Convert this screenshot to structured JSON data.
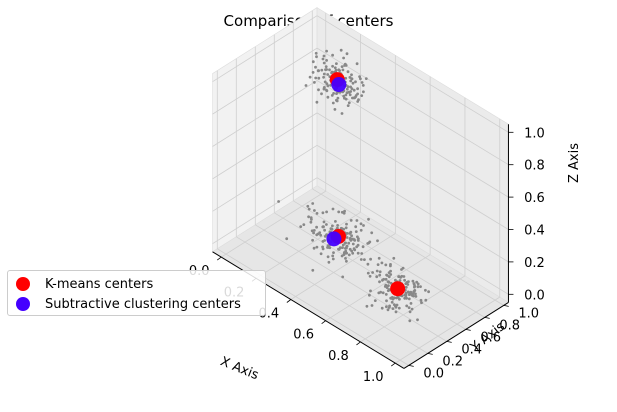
{
  "chart_data": {
    "type": "scatter",
    "title": "Comparison of centers",
    "xlabel": "X Axis",
    "ylabel": "Y Axis",
    "zlabel": "Z Axis",
    "xlim": [
      0,
      1
    ],
    "ylim": [
      0,
      1
    ],
    "zlim": [
      0,
      1
    ],
    "x_ticks": [
      "0.0",
      "0.2",
      "0.4",
      "0.6",
      "0.8",
      "1.0"
    ],
    "y_ticks": [
      "0.0",
      "0.2",
      "0.4",
      "0.6",
      "0.8",
      "1.0"
    ],
    "z_ticks": [
      "0.0",
      "0.2",
      "0.4",
      "0.6",
      "0.8",
      "1.0"
    ],
    "grid": true,
    "legend_position": "lower-left",
    "clusters_approx": [
      {
        "center": [
          0.18,
          0.85,
          0.82
        ],
        "spread": [
          0.07,
          0.07,
          0.06
        ],
        "count": 140
      },
      {
        "center": [
          0.45,
          0.35,
          0.22
        ],
        "spread": [
          0.08,
          0.08,
          0.06
        ],
        "count": 170
      },
      {
        "center": [
          0.85,
          0.25,
          0.2
        ],
        "spread": [
          0.07,
          0.08,
          0.05
        ],
        "count": 150
      }
    ],
    "series": [
      {
        "name": "K-means centers",
        "color": "#ff0000",
        "points": [
          [
            0.17,
            0.86,
            0.82
          ],
          [
            0.45,
            0.36,
            0.22
          ],
          [
            0.85,
            0.25,
            0.2
          ]
        ]
      },
      {
        "name": "Subtractive clustering centers",
        "color": "#4400ff",
        "points": [
          [
            0.19,
            0.84,
            0.81
          ],
          [
            0.44,
            0.33,
            0.21
          ]
        ]
      }
    ],
    "data_point_color": "#888888"
  }
}
